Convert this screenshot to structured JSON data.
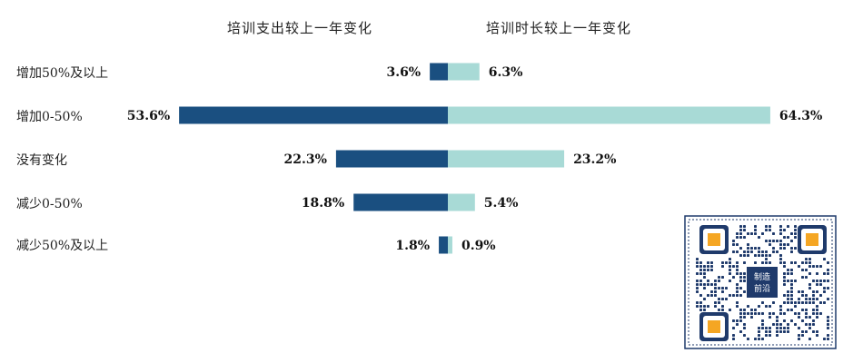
{
  "colors": {
    "left_bar": "#1a4f80",
    "right_bar": "#a8dad6",
    "qr_frame": "#1f3a6b",
    "qr_accent": "#f5a623"
  },
  "chart_data": {
    "type": "bar",
    "orientation": "horizontal-diverging",
    "series": [
      {
        "name": "培训支出较上一年变化",
        "values": [
          3.6,
          53.6,
          22.3,
          18.8,
          1.8
        ]
      },
      {
        "name": "培训时长较上一年变化",
        "values": [
          6.3,
          64.3,
          23.2,
          5.4,
          0.9
        ]
      }
    ],
    "categories": [
      "增加50%及以上",
      "增加0-50%",
      "没有变化",
      "减少0-50%",
      "减少50%及以上"
    ],
    "value_labels": {
      "left": [
        "3.6%",
        "53.6%",
        "22.3%",
        "18.8%",
        "1.8%"
      ],
      "right": [
        "6.3%",
        "64.3%",
        "23.2%",
        "5.4%",
        "0.9%"
      ]
    },
    "unit": "%",
    "grid": false,
    "legend": "top"
  },
  "qr": {
    "icon": "qr-code-icon",
    "logo_text_line1": "制造",
    "logo_text_line2": "前沿"
  }
}
